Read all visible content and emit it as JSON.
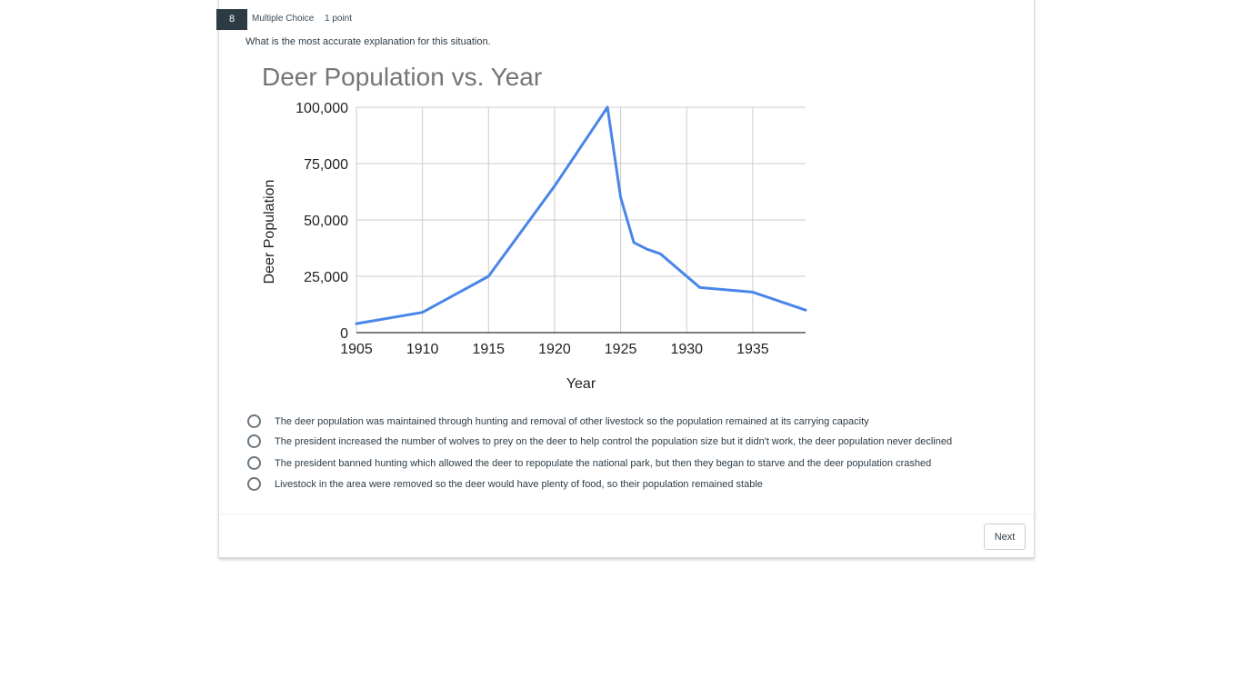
{
  "question": {
    "number": "8",
    "type": "Multiple Choice",
    "points": "1 point",
    "prompt": "What is the most accurate explanation for this situation."
  },
  "chart_data": {
    "type": "line",
    "title": "Deer Population vs. Year",
    "xlabel": "Year",
    "ylabel": "Deer Population",
    "xlim": [
      1905,
      1939
    ],
    "ylim": [
      0,
      100000
    ],
    "x_ticks": [
      1905,
      1910,
      1915,
      1920,
      1925,
      1930,
      1935
    ],
    "x_tick_labels": [
      "1905",
      "1910",
      "1915",
      "1920",
      "1925",
      "1930",
      "1935"
    ],
    "y_ticks": [
      0,
      25000,
      50000,
      75000,
      100000
    ],
    "y_tick_labels": [
      "0",
      "25,000",
      "50,000",
      "75,000",
      "100,000"
    ],
    "grid": true,
    "colors": {
      "series": "#4a86e8",
      "grid": "#cccccc",
      "axis": "#333333",
      "title": "#757575"
    },
    "series": [
      {
        "name": "Deer Population",
        "x": [
          1905,
          1910,
          1915,
          1920,
          1924,
          1925,
          1926,
          1927,
          1928,
          1931,
          1935,
          1939
        ],
        "values": [
          4000,
          9000,
          25000,
          65000,
          100000,
          60000,
          40000,
          37000,
          35000,
          20000,
          18000,
          10000
        ]
      }
    ]
  },
  "answers": [
    {
      "label": "The deer population was maintained through hunting and removal of other livestock so the population remained at its carrying capacity"
    },
    {
      "label": "The president increased the number of wolves to prey on the deer to help control the population size but it didn't work, the deer population never declined"
    },
    {
      "label": "The president banned hunting which allowed the deer to repopulate the national park, but then they began to starve and the deer population crashed"
    },
    {
      "label": "Livestock in the area were removed so the deer would have plenty of food, so their population remained stable"
    }
  ],
  "footer": {
    "next_label": "Next"
  }
}
